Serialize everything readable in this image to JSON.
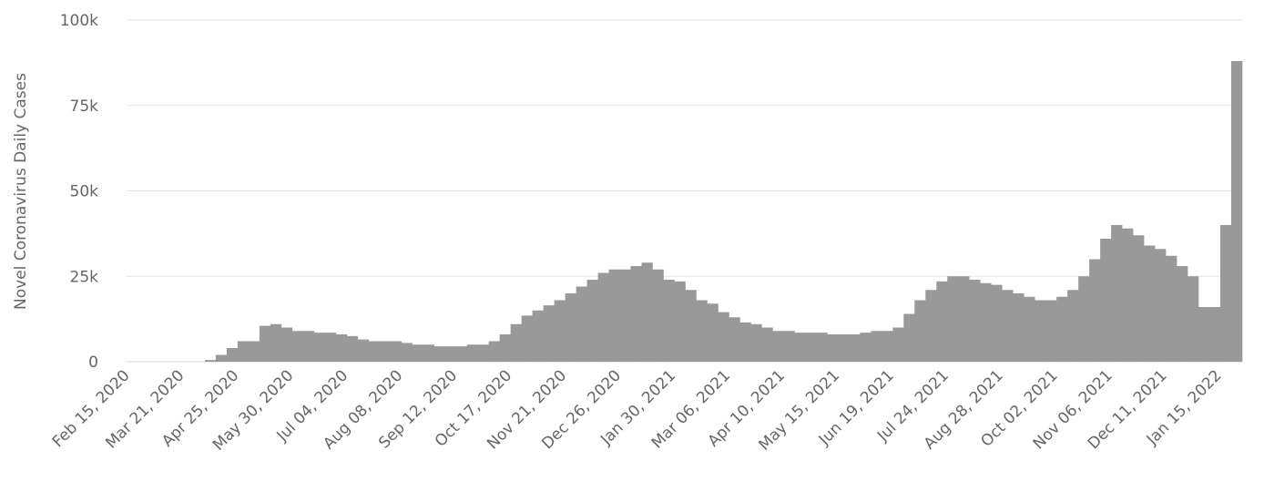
{
  "chart_data": {
    "type": "bar",
    "y_label": "Novel Coronavirus Daily Cases",
    "categories": [
      "Feb 15, 2020",
      null,
      null,
      null,
      null,
      "Mar 21, 2020",
      null,
      null,
      null,
      null,
      "Apr 25, 2020",
      null,
      null,
      null,
      null,
      "May 30, 2020",
      null,
      null,
      null,
      null,
      "Jul 04, 2020",
      null,
      null,
      null,
      null,
      "Aug 08, 2020",
      null,
      null,
      null,
      null,
      "Sep 12, 2020",
      null,
      null,
      null,
      null,
      "Oct 17, 2020",
      null,
      null,
      null,
      null,
      "Nov 21, 2020",
      null,
      null,
      null,
      null,
      "Dec 26, 2020",
      null,
      null,
      null,
      null,
      "Jan 30, 2021",
      null,
      null,
      null,
      null,
      "Mar 06, 2021",
      null,
      null,
      null,
      null,
      "Apr 10, 2021",
      null,
      null,
      null,
      null,
      "May 15, 2021",
      null,
      null,
      null,
      null,
      "Jun 19, 2021",
      null,
      null,
      null,
      null,
      "Jul 24, 2021",
      null,
      null,
      null,
      null,
      "Aug 28, 2021",
      null,
      null,
      null,
      null,
      "Oct 02, 2021",
      null,
      null,
      null,
      null,
      "Nov 06, 2021",
      null,
      null,
      null,
      null,
      "Dec 11, 2021",
      null,
      null,
      null,
      null,
      "Jan 15, 2022",
      null
    ],
    "values": [
      0,
      0,
      0,
      0,
      0,
      0,
      0,
      500,
      2000,
      4000,
      6000,
      6000,
      10500,
      11000,
      10000,
      9000,
      9000,
      8500,
      8500,
      8000,
      7500,
      6500,
      6000,
      6000,
      6000,
      5500,
      5000,
      5000,
      4500,
      4500,
      4500,
      5000,
      5000,
      6000,
      8000,
      11000,
      13500,
      15000,
      16500,
      18000,
      20000,
      22000,
      24000,
      26000,
      27000,
      27000,
      28000,
      29000,
      27000,
      24000,
      23500,
      21000,
      18000,
      17000,
      14500,
      13000,
      11500,
      11000,
      10000,
      9000,
      9000,
      8500,
      8500,
      8500,
      8000,
      8000,
      8000,
      8500,
      9000,
      9000,
      10000,
      14000,
      18000,
      21000,
      23500,
      25000,
      25000,
      24000,
      23000,
      22500,
      21000,
      20000,
      19000,
      18000,
      18000,
      19000,
      21000,
      25000,
      30000,
      36000,
      40000,
      39000,
      37000,
      34000,
      33000,
      31000,
      28000,
      25000,
      16000,
      16000,
      40000,
      88000
    ],
    "color": "#999999",
    "ylim": [
      0,
      100000
    ],
    "yticks": [
      0,
      {
        "value": 25000,
        "label": "25k"
      },
      {
        "value": 50000,
        "label": "50k"
      },
      {
        "value": 75000,
        "label": "75k"
      },
      {
        "value": 100000,
        "label": "100k"
      }
    ],
    "grid": true
  }
}
